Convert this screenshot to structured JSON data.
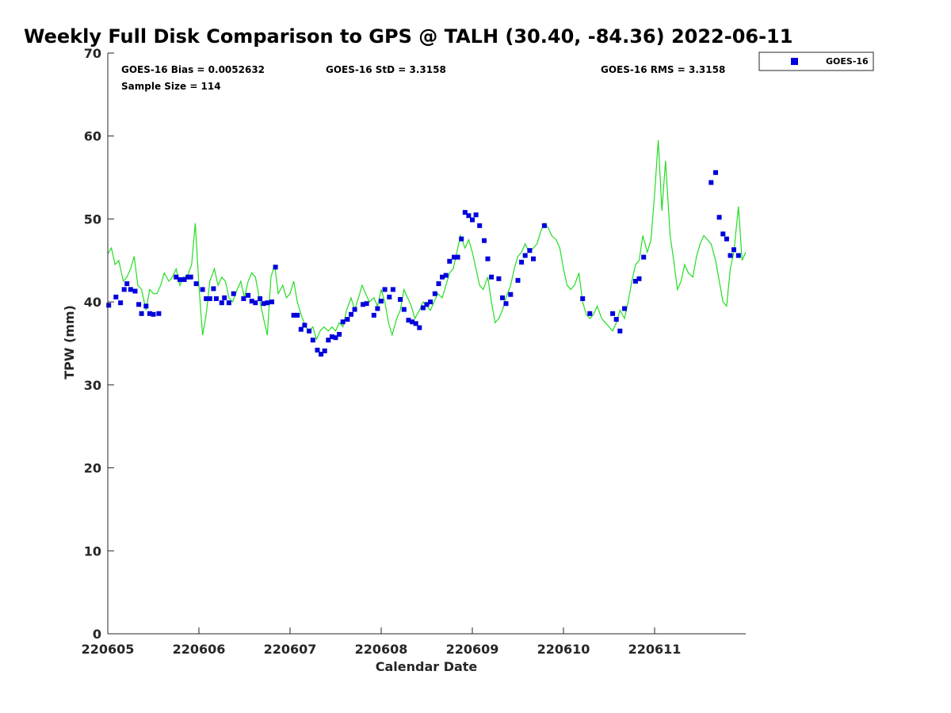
{
  "chart_data": {
    "type": "scatter",
    "title": "Weekly Full Disk Comparison to GPS @ TALH (30.40, -84.36) 2022-06-11",
    "xlabel": "Calendar Date",
    "ylabel": "TPW (mm)",
    "xlim": [
      0,
      7
    ],
    "ylim": [
      0,
      70
    ],
    "x_ticks": [
      {
        "value": 0,
        "label": "220605"
      },
      {
        "value": 1,
        "label": "220606"
      },
      {
        "value": 2,
        "label": "220607"
      },
      {
        "value": 3,
        "label": "220608"
      },
      {
        "value": 4,
        "label": "220609"
      },
      {
        "value": 5,
        "label": "220610"
      },
      {
        "value": 6,
        "label": "220611"
      }
    ],
    "y_ticks": [
      0,
      10,
      20,
      30,
      40,
      50,
      60,
      70
    ],
    "grid": false,
    "legend": {
      "position": "top-right",
      "entries": [
        "GOES-16"
      ]
    },
    "stats": {
      "bias": "GOES-16 Bias = 0.0052632",
      "std": "GOES-16 StD = 3.3158",
      "rms": "GOES-16 RMS = 3.3158",
      "sample": "Sample Size = 114"
    },
    "colors": {
      "goes": "#0000dd",
      "gps": "#22dd22"
    },
    "series": [
      {
        "name": "GOES-16",
        "marker": "square",
        "x": [
          0.01,
          0.09,
          0.14,
          0.18,
          0.21,
          0.25,
          0.3,
          0.34,
          0.37,
          0.42,
          0.46,
          0.5,
          0.56,
          0.75,
          0.79,
          0.84,
          0.88,
          0.91,
          0.97,
          1.04,
          1.08,
          1.12,
          1.16,
          1.19,
          1.25,
          1.28,
          1.33,
          1.38,
          1.49,
          1.54,
          1.58,
          1.62,
          1.67,
          1.71,
          1.75,
          1.8,
          1.84,
          2.04,
          2.08,
          2.12,
          2.16,
          2.21,
          2.25,
          2.3,
          2.34,
          2.38,
          2.42,
          2.46,
          2.5,
          2.54,
          2.58,
          2.63,
          2.67,
          2.71,
          2.8,
          2.84,
          2.92,
          2.96,
          3.0,
          3.04,
          3.09,
          3.13,
          3.21,
          3.25,
          3.3,
          3.34,
          3.38,
          3.42,
          3.46,
          3.5,
          3.54,
          3.59,
          3.63,
          3.67,
          3.71,
          3.75,
          3.8,
          3.84,
          3.88,
          3.92,
          3.96,
          4.0,
          4.04,
          4.08,
          4.13,
          4.17,
          4.21,
          4.29,
          4.33,
          4.37,
          4.42,
          4.5,
          4.54,
          4.58,
          4.63,
          4.67,
          4.79,
          5.21,
          5.29,
          5.54,
          5.58,
          5.62,
          5.67,
          5.79,
          5.83,
          5.88,
          6.62,
          6.67,
          6.71,
          6.75,
          6.79,
          6.83,
          6.87,
          6.92
        ],
        "y": [
          39.6,
          40.6,
          39.9,
          41.5,
          42.2,
          41.5,
          41.3,
          39.7,
          38.6,
          39.5,
          38.6,
          38.5,
          38.6,
          43.0,
          42.7,
          42.7,
          43.0,
          43.0,
          42.2,
          41.5,
          40.4,
          40.4,
          41.6,
          40.4,
          39.9,
          40.5,
          39.9,
          41.0,
          40.4,
          40.8,
          40.1,
          39.9,
          40.4,
          39.8,
          39.9,
          40.0,
          44.2,
          38.4,
          38.4,
          36.7,
          37.2,
          36.5,
          35.4,
          34.2,
          33.7,
          34.1,
          35.4,
          35.8,
          35.7,
          36.1,
          37.6,
          37.9,
          38.5,
          39.1,
          39.7,
          39.8,
          38.4,
          39.2,
          40.1,
          41.5,
          40.6,
          41.5,
          40.3,
          39.1,
          37.8,
          37.6,
          37.4,
          36.9,
          39.3,
          39.7,
          40.0,
          41.0,
          42.2,
          43.0,
          43.2,
          44.9,
          45.4,
          45.4,
          47.6,
          50.8,
          50.4,
          49.9,
          50.5,
          49.2,
          47.4,
          45.2,
          43.0,
          42.8,
          40.5,
          39.8,
          40.9,
          42.6,
          44.8,
          45.6,
          46.2,
          45.2,
          49.2,
          40.4,
          38.6,
          38.6,
          37.9,
          36.5,
          39.2,
          42.5,
          42.8,
          45.4,
          54.4,
          55.6,
          50.2,
          48.2,
          47.6,
          45.6,
          46.3,
          45.6
        ]
      },
      {
        "name": "",
        "marker": "line",
        "x": [
          0.0,
          0.04,
          0.08,
          0.12,
          0.17,
          0.21,
          0.25,
          0.29,
          0.33,
          0.37,
          0.42,
          0.46,
          0.5,
          0.54,
          0.58,
          0.62,
          0.67,
          0.71,
          0.75,
          0.79,
          0.83,
          0.87,
          0.92,
          0.96,
          1.0,
          1.04,
          1.08,
          1.12,
          1.17,
          1.21,
          1.25,
          1.29,
          1.33,
          1.37,
          1.42,
          1.46,
          1.5,
          1.54,
          1.58,
          1.62,
          1.67,
          1.71,
          1.75,
          1.79,
          1.83,
          1.87,
          1.92,
          1.96,
          2.0,
          2.04,
          2.08,
          2.12,
          2.17,
          2.21,
          2.25,
          2.29,
          2.33,
          2.37,
          2.42,
          2.46,
          2.5,
          2.54,
          2.58,
          2.62,
          2.67,
          2.71,
          2.75,
          2.79,
          2.83,
          2.87,
          2.92,
          2.96,
          3.0,
          3.04,
          3.08,
          3.12,
          3.17,
          3.21,
          3.25,
          3.29,
          3.33,
          3.37,
          3.42,
          3.46,
          3.5,
          3.54,
          3.58,
          3.62,
          3.67,
          3.71,
          3.75,
          3.79,
          3.83,
          3.87,
          3.92,
          3.96,
          4.0,
          4.04,
          4.08,
          4.12,
          4.17,
          4.21,
          4.25,
          4.29,
          4.33,
          4.37,
          4.42,
          4.46,
          4.5,
          4.54,
          4.58,
          4.62,
          4.67,
          4.71,
          4.75,
          4.79,
          4.83,
          4.87,
          4.92,
          4.96,
          5.0,
          5.04,
          5.08,
          5.12,
          5.17,
          5.21,
          5.25,
          5.29,
          5.33,
          5.37,
          5.42,
          5.46,
          5.5,
          5.54,
          5.58,
          5.62,
          5.67,
          5.71,
          5.75,
          5.79,
          5.83,
          5.87,
          5.92,
          5.96,
          6.0,
          6.04,
          6.08,
          6.12,
          6.17,
          6.21,
          6.25,
          6.29,
          6.33,
          6.37,
          6.42,
          6.46,
          6.5,
          6.54,
          6.58,
          6.62,
          6.67,
          6.71,
          6.75,
          6.79,
          6.83,
          6.87,
          6.92,
          6.96,
          7.0
        ],
        "y": [
          45.8,
          46.5,
          44.5,
          45.0,
          42.5,
          43.0,
          44.0,
          45.5,
          42.0,
          41.5,
          39.0,
          41.5,
          41.0,
          41.0,
          42.0,
          43.5,
          42.5,
          43.0,
          44.0,
          42.0,
          43.0,
          43.0,
          44.5,
          49.5,
          42.0,
          36.0,
          38.5,
          42.5,
          44.0,
          42.0,
          43.0,
          42.5,
          40.5,
          40.0,
          41.5,
          42.5,
          40.5,
          42.5,
          43.5,
          43.0,
          40.0,
          38.0,
          36.0,
          43.0,
          44.5,
          41.0,
          42.0,
          40.5,
          41.0,
          42.5,
          40.0,
          38.5,
          37.0,
          36.5,
          37.0,
          35.5,
          36.5,
          37.0,
          36.5,
          37.0,
          36.5,
          37.5,
          37.0,
          39.0,
          40.5,
          39.0,
          40.5,
          42.0,
          41.0,
          40.0,
          40.5,
          39.5,
          41.5,
          40.0,
          37.5,
          36.0,
          38.0,
          39.0,
          41.5,
          40.5,
          39.5,
          38.0,
          39.0,
          40.0,
          39.5,
          39.0,
          40.0,
          41.0,
          40.5,
          42.0,
          43.5,
          44.0,
          46.0,
          48.0,
          46.5,
          47.5,
          46.0,
          44.0,
          42.0,
          41.5,
          43.0,
          40.0,
          37.5,
          38.0,
          39.0,
          40.5,
          42.0,
          44.0,
          45.5,
          46.0,
          47.0,
          46.0,
          46.5,
          47.0,
          48.5,
          49.5,
          49.0,
          48.0,
          47.5,
          46.5,
          44.0,
          42.0,
          41.5,
          42.0,
          43.5,
          40.0,
          38.5,
          38.0,
          38.5,
          39.5,
          38.0,
          37.5,
          37.0,
          36.5,
          37.5,
          39.0,
          38.0,
          40.0,
          42.5,
          44.5,
          45.0,
          48.0,
          46.0,
          47.5,
          53.0,
          59.5,
          51.0,
          57.0,
          48.0,
          45.0,
          41.5,
          42.5,
          44.5,
          43.5,
          43.0,
          45.5,
          47.0,
          48.0,
          47.5,
          47.0,
          45.0,
          42.5,
          40.0,
          39.5,
          44.0,
          46.0,
          51.5,
          45.0,
          46.0
        ]
      }
    ]
  }
}
